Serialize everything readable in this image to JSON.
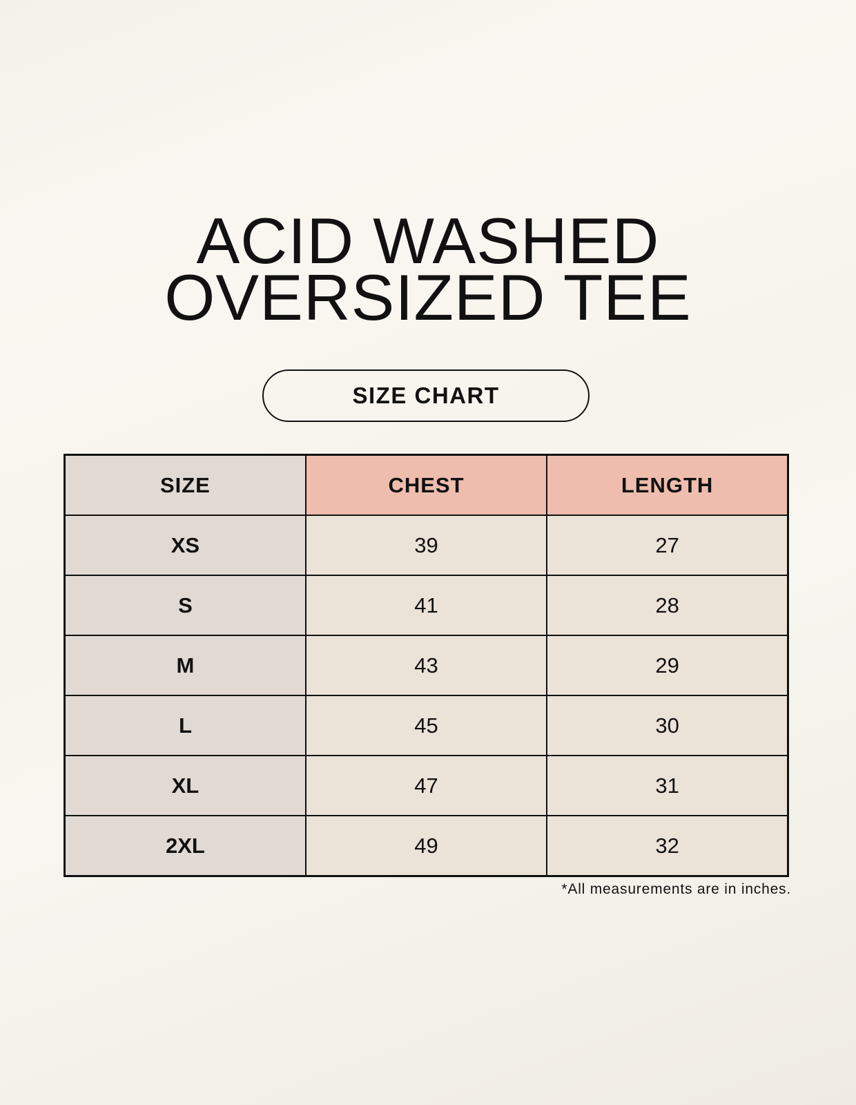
{
  "title_line1": "ACID WASHED",
  "title_line2": "OVERSIZED TEE",
  "badge": "SIZE CHART",
  "table": {
    "headers": [
      "SIZE",
      "CHEST",
      "LENGTH"
    ],
    "rows": [
      [
        "XS",
        "39",
        "27"
      ],
      [
        "S",
        "41",
        "28"
      ],
      [
        "M",
        "43",
        "29"
      ],
      [
        "L",
        "45",
        "30"
      ],
      [
        "XL",
        "47",
        "31"
      ],
      [
        "2XL",
        "49",
        "32"
      ]
    ]
  },
  "footnote": "*All measurements are in inches.",
  "colors": {
    "size_column": "#e1d9d3",
    "measure_header": "#eebdae",
    "measure_cells": "#ebe2d8"
  }
}
